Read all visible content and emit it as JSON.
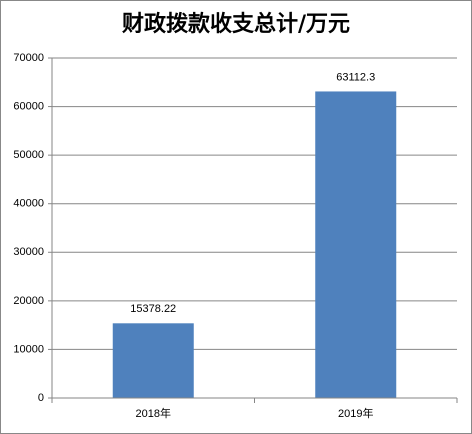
{
  "chart_data": {
    "type": "bar",
    "title": "财政拨款收支总计/万元",
    "categories": [
      "2018年",
      "2019年"
    ],
    "values": [
      15378.22,
      63112.3
    ],
    "color": "#4f81bd",
    "ylim": [
      0,
      70000
    ],
    "yticks": [
      0,
      10000,
      20000,
      30000,
      40000,
      50000,
      60000,
      70000
    ],
    "grid": true
  }
}
